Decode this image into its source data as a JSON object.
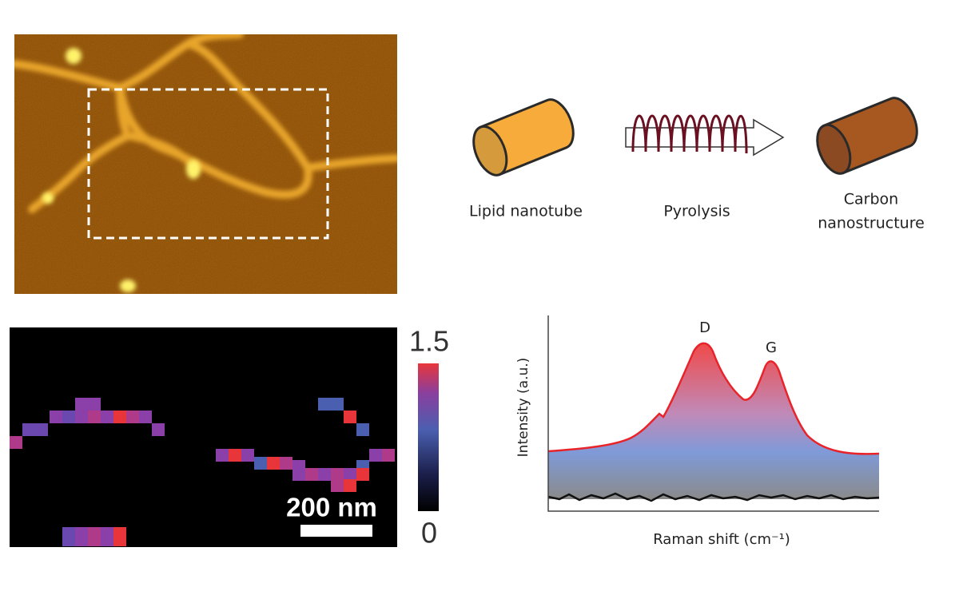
{
  "schematic": {
    "start_label": "Lipid nanotube",
    "process_label": "Pyrolysis",
    "end_label_lines": [
      "Carbon",
      "nanostructure"
    ]
  },
  "raman_map": {
    "colorbar": {
      "max": 1.5,
      "min": 0
    },
    "scale_bar": "200 nm"
  },
  "spectrum": {
    "peaks": [
      "D",
      "G"
    ],
    "y_label": "Intensity (a.u.)",
    "x_label": "Raman shift (cm⁻¹)"
  }
}
